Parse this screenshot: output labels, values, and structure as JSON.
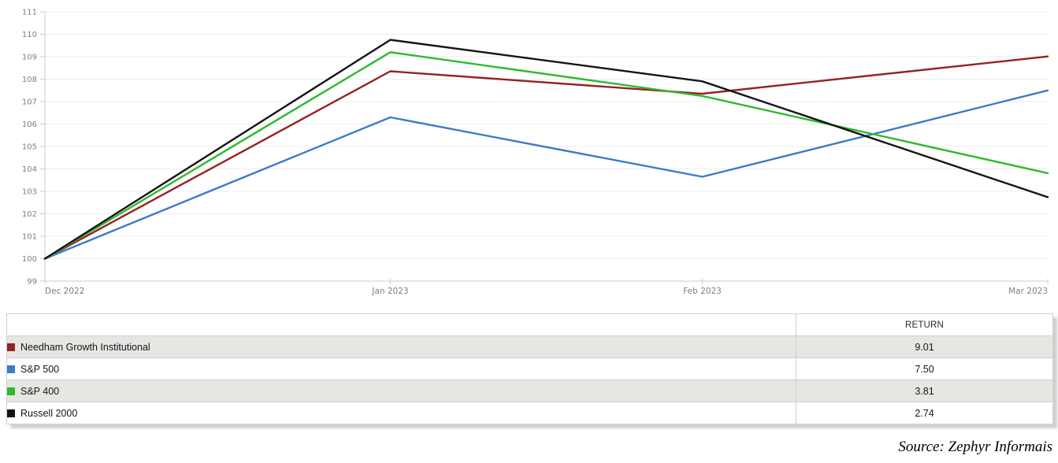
{
  "chart_data": {
    "type": "line",
    "title": "",
    "xlabel": "",
    "ylabel": "",
    "x_labels": [
      "Dec 2022",
      "Jan 2023",
      "Feb 2023",
      "Mar 2023"
    ],
    "x_days": [
      0,
      31,
      59,
      90
    ],
    "ylim": [
      99,
      111
    ],
    "y_tick_step": 1,
    "grid": true,
    "legend_position": "table-below",
    "series": [
      {
        "name": "Needham Growth Institutional",
        "color": "#962222",
        "values": [
          100,
          108.35,
          107.35,
          109.01
        ]
      },
      {
        "name": "S&P 500",
        "color": "#3D7BC8",
        "values": [
          100,
          106.3,
          103.65,
          107.5
        ]
      },
      {
        "name": "S&P 400",
        "color": "#2EB92E",
        "values": [
          100,
          109.2,
          107.25,
          103.81
        ]
      },
      {
        "name": "Russell 2000",
        "color": "#141414",
        "values": [
          100,
          109.75,
          107.9,
          102.74
        ]
      }
    ]
  },
  "table": {
    "return_header": "RETURN",
    "rows": [
      {
        "name": "Needham Growth Institutional",
        "value": "9.01",
        "color": "#962222"
      },
      {
        "name": "S&P 500",
        "value": "7.50",
        "color": "#3D7BC8"
      },
      {
        "name": "S&P 400",
        "value": "3.81",
        "color": "#2EB92E"
      },
      {
        "name": "Russell 2000",
        "value": "2.74",
        "color": "#141414"
      }
    ]
  },
  "footer": {
    "source": "Source: Zephyr Informais"
  },
  "colors": {
    "grid_line": "#ececec",
    "axis_line": "#c3ccd3",
    "tick_label": "#7d7d86",
    "striped_row_bg": "#e8e6e2"
  }
}
